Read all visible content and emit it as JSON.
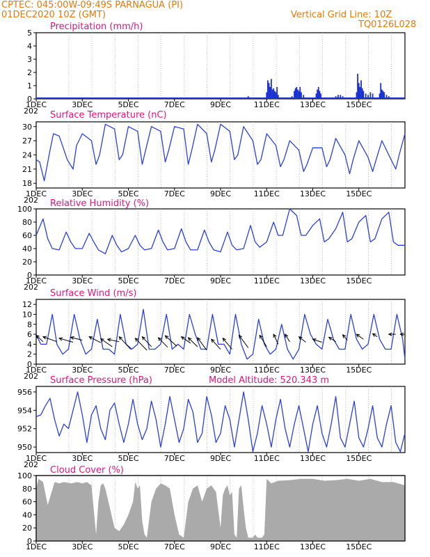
{
  "header": {
    "line1": "CPTEC:   045:00W-09:49S  PARNAGUA (PI)",
    "line2": "01DEC2020 10Z (GMT)",
    "right1": "Vertical Grid Line: 10Z",
    "right2": "TQ0126L028"
  },
  "x_ticks": [
    "1DEC",
    "3DEC",
    "5DEC",
    "7DEC",
    "9DEC",
    "11DEC",
    "13DEC",
    "15DEC"
  ],
  "x_stub": "202",
  "chart_data": [
    {
      "type": "bar",
      "title": "Precipitation (mm/h)",
      "ylim": [
        0,
        5
      ],
      "yticks": [
        0,
        1,
        2,
        3,
        4,
        5
      ],
      "x_days": [
        0,
        16
      ],
      "bars": [
        [
          9.2,
          0.2
        ],
        [
          9.6,
          0.1
        ],
        [
          10.0,
          0.5
        ],
        [
          10.05,
          1.4
        ],
        [
          10.1,
          1.2
        ],
        [
          10.15,
          0.9
        ],
        [
          10.2,
          1.5
        ],
        [
          10.25,
          0.7
        ],
        [
          10.3,
          0.8
        ],
        [
          10.35,
          0.6
        ],
        [
          10.4,
          0.5
        ],
        [
          10.45,
          0.9
        ],
        [
          10.5,
          0.3
        ],
        [
          11.1,
          0.2
        ],
        [
          11.2,
          0.6
        ],
        [
          11.25,
          0.8
        ],
        [
          11.3,
          0.9
        ],
        [
          11.35,
          0.7
        ],
        [
          11.4,
          0.6
        ],
        [
          11.45,
          0.9
        ],
        [
          11.5,
          0.5
        ],
        [
          11.6,
          0.3
        ],
        [
          12.15,
          0.4
        ],
        [
          12.2,
          0.7
        ],
        [
          12.25,
          0.9
        ],
        [
          12.3,
          0.6
        ],
        [
          12.35,
          0.4
        ],
        [
          13.0,
          0.2
        ],
        [
          13.1,
          0.3
        ],
        [
          13.2,
          0.3
        ],
        [
          13.3,
          0.2
        ],
        [
          13.9,
          0.5
        ],
        [
          13.95,
          1.9
        ],
        [
          14.0,
          1.2
        ],
        [
          14.05,
          0.9
        ],
        [
          14.1,
          1.4
        ],
        [
          14.15,
          0.8
        ],
        [
          14.2,
          0.6
        ],
        [
          14.3,
          0.4
        ],
        [
          14.4,
          0.3
        ],
        [
          14.5,
          0.5
        ],
        [
          14.6,
          0.4
        ],
        [
          14.9,
          0.4
        ],
        [
          14.95,
          1.2
        ],
        [
          15.0,
          0.7
        ],
        [
          15.05,
          0.6
        ],
        [
          15.1,
          0.5
        ],
        [
          15.2,
          0.3
        ],
        [
          15.3,
          0.2
        ]
      ]
    },
    {
      "type": "line",
      "title": "Surface Temperature (nC)",
      "ylim": [
        17,
        31
      ],
      "yticks": [
        18,
        21,
        24,
        27,
        30
      ],
      "x": [
        0,
        0.15,
        0.35,
        0.6,
        0.75,
        1.0,
        1.35,
        1.6,
        1.75,
        2.0,
        2.4,
        2.6,
        2.75,
        3.0,
        3.4,
        3.6,
        3.75,
        4.0,
        4.4,
        4.6,
        4.75,
        5.0,
        5.4,
        5.6,
        5.75,
        6.0,
        6.4,
        6.6,
        6.75,
        7.0,
        7.4,
        7.6,
        7.75,
        8.0,
        8.4,
        8.6,
        8.75,
        9.0,
        9.4,
        9.6,
        9.75,
        10.0,
        10.4,
        10.6,
        10.75,
        11.0,
        11.4,
        11.6,
        11.75,
        12.0,
        12.4,
        12.6,
        12.75,
        13.0,
        13.4,
        13.6,
        13.75,
        14.0,
        14.4,
        14.6,
        14.75,
        15.0,
        15.4,
        15.6,
        15.75,
        16.0
      ],
      "y": [
        23,
        22.5,
        18.5,
        25,
        28.5,
        28,
        23,
        21,
        26,
        28.5,
        27,
        22,
        24,
        30.5,
        29.5,
        23,
        24,
        30,
        29,
        22,
        25,
        30,
        29,
        22.5,
        25,
        30,
        29.5,
        22,
        25,
        30.5,
        28.5,
        22.5,
        25,
        30.5,
        29,
        23,
        24,
        30,
        27,
        22,
        23,
        28.5,
        26,
        21.5,
        23,
        27,
        25,
        20.5,
        22,
        25.5,
        25.5,
        21.5,
        23,
        27.5,
        24,
        20,
        23,
        27,
        23.5,
        20.5,
        23,
        27,
        23,
        21,
        24,
        28.5
      ]
    },
    {
      "type": "line",
      "title": "Relative Humidity (%)",
      "ylim": [
        0,
        100
      ],
      "yticks": [
        0,
        20,
        40,
        60,
        80,
        100
      ],
      "x": [
        0,
        0.3,
        0.5,
        0.7,
        1.0,
        1.3,
        1.5,
        1.7,
        2.0,
        2.3,
        2.5,
        2.7,
        3.0,
        3.3,
        3.5,
        3.7,
        4.0,
        4.3,
        4.5,
        4.7,
        5.0,
        5.3,
        5.5,
        5.7,
        6.0,
        6.3,
        6.5,
        6.7,
        7.0,
        7.3,
        7.5,
        7.7,
        8.0,
        8.3,
        8.5,
        8.7,
        9.0,
        9.3,
        9.5,
        9.7,
        10.0,
        10.3,
        10.5,
        10.7,
        11.0,
        11.3,
        11.5,
        11.7,
        12.0,
        12.3,
        12.5,
        12.7,
        13.0,
        13.3,
        13.5,
        13.7,
        14.0,
        14.3,
        14.5,
        14.7,
        15.0,
        15.3,
        15.5,
        15.7,
        16.0
      ],
      "y": [
        60,
        85,
        55,
        40,
        38,
        65,
        50,
        40,
        40,
        63,
        50,
        38,
        32,
        60,
        45,
        35,
        40,
        60,
        45,
        38,
        40,
        68,
        50,
        38,
        40,
        70,
        50,
        38,
        38,
        68,
        50,
        38,
        35,
        65,
        45,
        38,
        40,
        75,
        50,
        42,
        50,
        80,
        60,
        60,
        100,
        90,
        60,
        60,
        75,
        85,
        50,
        55,
        70,
        95,
        50,
        55,
        80,
        90,
        50,
        55,
        85,
        95,
        50,
        45,
        45
      ]
    },
    {
      "type": "line",
      "title": "Surface Wind (m/s)",
      "ylim": [
        0,
        13
      ],
      "yticks": [
        0,
        2,
        4,
        6,
        8,
        10,
        12
      ],
      "x": [
        0,
        0.2,
        0.45,
        0.7,
        0.9,
        1.15,
        1.4,
        1.65,
        1.9,
        2.15,
        2.4,
        2.65,
        2.9,
        3.15,
        3.4,
        3.65,
        3.9,
        4.15,
        4.4,
        4.65,
        4.9,
        5.15,
        5.4,
        5.65,
        5.9,
        6.15,
        6.4,
        6.65,
        6.9,
        7.15,
        7.4,
        7.65,
        7.9,
        8.15,
        8.4,
        8.65,
        8.9,
        9.15,
        9.4,
        9.65,
        9.9,
        10.15,
        10.4,
        10.65,
        10.9,
        11.15,
        11.4,
        11.65,
        11.9,
        12.15,
        12.4,
        12.65,
        12.9,
        13.15,
        13.4,
        13.65,
        13.9,
        14.15,
        14.4,
        14.65,
        14.9,
        15.15,
        15.4,
        15.65,
        15.9,
        16.0
      ],
      "y": [
        6,
        4,
        4,
        10,
        4,
        2,
        3,
        10,
        5,
        2,
        3,
        9,
        3,
        3,
        2,
        10,
        4,
        3,
        4,
        11,
        3,
        3,
        4,
        10,
        3,
        4,
        3,
        10,
        6,
        3,
        3,
        10,
        4,
        4,
        2,
        10,
        4,
        1,
        2,
        9,
        4,
        2,
        3,
        8,
        3,
        1,
        3,
        10,
        6,
        4,
        3,
        9,
        5,
        3,
        3,
        10,
        5,
        3,
        4,
        10,
        5,
        3,
        3,
        10,
        5,
        1
      ],
      "arrows": [
        [
          0.3,
          4.5,
          0.0,
          5.8
        ],
        [
          0.9,
          4.5,
          0.3,
          5.5
        ],
        [
          1.6,
          4.4,
          1.0,
          5.2
        ],
        [
          2.0,
          4.8,
          1.5,
          5.4
        ],
        [
          2.8,
          4.3,
          2.3,
          5.5
        ],
        [
          3.3,
          3.5,
          2.8,
          5.1
        ],
        [
          3.6,
          4.5,
          3.1,
          5.0
        ],
        [
          4.1,
          3.0,
          3.6,
          5.5
        ],
        [
          4.8,
          2.8,
          4.3,
          5.2
        ],
        [
          5.0,
          3.5,
          4.6,
          5.5
        ],
        [
          5.7,
          3.4,
          5.3,
          5.3
        ],
        [
          6.1,
          3.6,
          5.6,
          5.7
        ],
        [
          6.7,
          4.2,
          6.3,
          5.5
        ],
        [
          7.0,
          3.5,
          6.6,
          5.3
        ],
        [
          7.4,
          2.8,
          7.0,
          5.3
        ],
        [
          8.0,
          3.0,
          7.6,
          5.0
        ],
        [
          8.5,
          3.0,
          8.1,
          5.2
        ],
        [
          9.2,
          3.3,
          8.8,
          5.8
        ],
        [
          10.0,
          3.5,
          9.7,
          5.8
        ],
        [
          10.5,
          4.0,
          10.3,
          6.0
        ],
        [
          11.0,
          4.5,
          10.8,
          6.0
        ],
        [
          11.7,
          4.4,
          11.4,
          5.5
        ],
        [
          12.4,
          4.4,
          12.0,
          5.0
        ],
        [
          13.0,
          4.5,
          12.7,
          5.4
        ],
        [
          13.5,
          4.8,
          13.3,
          5.9
        ],
        [
          14.2,
          5.0,
          13.9,
          6.0
        ],
        [
          14.8,
          5.5,
          14.6,
          6.1
        ],
        [
          15.6,
          6.0,
          15.3,
          6.0
        ],
        [
          16.0,
          6.0,
          15.8,
          6.0
        ]
      ]
    },
    {
      "type": "line",
      "title": "Surface Pressure (hPa)",
      "annotation": "Model Altitude: 520.343 m",
      "ylim": [
        949.4,
        956.6
      ],
      "yticks": [
        950,
        952,
        954,
        956
      ],
      "x": [
        0,
        0.2,
        0.4,
        0.6,
        0.8,
        1.0,
        1.2,
        1.4,
        1.6,
        1.8,
        2.0,
        2.2,
        2.4,
        2.6,
        2.8,
        3.0,
        3.2,
        3.4,
        3.6,
        3.8,
        4.0,
        4.2,
        4.4,
        4.6,
        4.8,
        5.0,
        5.2,
        5.4,
        5.6,
        5.8,
        6.0,
        6.2,
        6.4,
        6.6,
        6.8,
        7.0,
        7.2,
        7.4,
        7.6,
        7.8,
        8.0,
        8.2,
        8.4,
        8.6,
        8.8,
        9.0,
        9.2,
        9.4,
        9.6,
        9.8,
        10.0,
        10.2,
        10.4,
        10.6,
        10.8,
        11.0,
        11.2,
        11.4,
        11.6,
        11.8,
        12.0,
        12.2,
        12.4,
        12.6,
        12.8,
        13.0,
        13.2,
        13.4,
        13.6,
        13.8,
        14.0,
        14.2,
        14.4,
        14.6,
        14.8,
        15.0,
        15.2,
        15.4,
        15.6,
        15.8,
        16.0
      ],
      "y": [
        953.3,
        953.5,
        954.5,
        955.3,
        953.0,
        951.2,
        952.5,
        952.0,
        954.0,
        956.0,
        953.5,
        950.5,
        953.5,
        954.5,
        952.0,
        950.8,
        954.0,
        954.8,
        952.5,
        950.5,
        952.5,
        955.2,
        952.5,
        950.8,
        952.0,
        955.0,
        953.0,
        950.0,
        952.5,
        955.5,
        953.0,
        950.5,
        952.0,
        955.2,
        953.8,
        950.5,
        951.5,
        955.5,
        953.5,
        950.5,
        951.5,
        954.5,
        953.0,
        950.0,
        953.0,
        956.0,
        953.0,
        949.5,
        951.5,
        954.5,
        952.5,
        950.0,
        953.0,
        955.2,
        952.0,
        950.0,
        952.5,
        954.5,
        952.0,
        949.5,
        952.5,
        954.5,
        951.5,
        950.0,
        952.5,
        955.5,
        951.0,
        950.0,
        952.5,
        955.0,
        951.0,
        950.0,
        952.0,
        954.5,
        951.0,
        950.0,
        952.5,
        954.5,
        950.5,
        949.5,
        951.5
      ]
    },
    {
      "type": "area",
      "title": "Cloud Cover (%)",
      "ylim": [
        0,
        100
      ],
      "yticks": [
        0,
        20,
        40,
        60,
        80,
        100
      ],
      "x": [
        0,
        0.1,
        0.3,
        0.5,
        0.8,
        1.0,
        1.2,
        1.5,
        1.8,
        2.0,
        2.2,
        2.4,
        2.6,
        2.7,
        2.8,
        2.9,
        3.0,
        3.2,
        3.4,
        3.6,
        3.8,
        4.0,
        4.2,
        4.3,
        4.4,
        4.5,
        4.6,
        4.7,
        4.8,
        5.0,
        5.2,
        5.4,
        5.6,
        5.8,
        6.0,
        6.2,
        6.4,
        6.6,
        6.8,
        7.0,
        7.2,
        7.4,
        7.6,
        7.8,
        8.0,
        8.1,
        8.2,
        8.3,
        8.4,
        8.5,
        8.6,
        8.7,
        8.8,
        8.9,
        9.0,
        9.1,
        9.2,
        9.4,
        9.5,
        9.6,
        9.7,
        9.8,
        9.9,
        10.0,
        10.2,
        10.5,
        11.0,
        11.5,
        12.0,
        12.5,
        13.0,
        13.5,
        14.0,
        14.5,
        15.0,
        15.5,
        16.0
      ],
      "y": [
        80,
        95,
        90,
        55,
        90,
        88,
        90,
        88,
        90,
        88,
        90,
        85,
        10,
        60,
        85,
        88,
        80,
        50,
        20,
        15,
        25,
        40,
        60,
        90,
        80,
        85,
        30,
        10,
        5,
        60,
        80,
        88,
        85,
        80,
        40,
        10,
        5,
        60,
        80,
        85,
        60,
        80,
        85,
        75,
        20,
        70,
        80,
        85,
        70,
        75,
        10,
        5,
        80,
        85,
        50,
        20,
        5,
        5,
        10,
        5,
        5,
        5,
        10,
        95,
        88,
        92,
        93,
        95,
        95,
        92,
        93,
        95,
        92,
        95,
        90,
        90,
        85
      ]
    }
  ]
}
